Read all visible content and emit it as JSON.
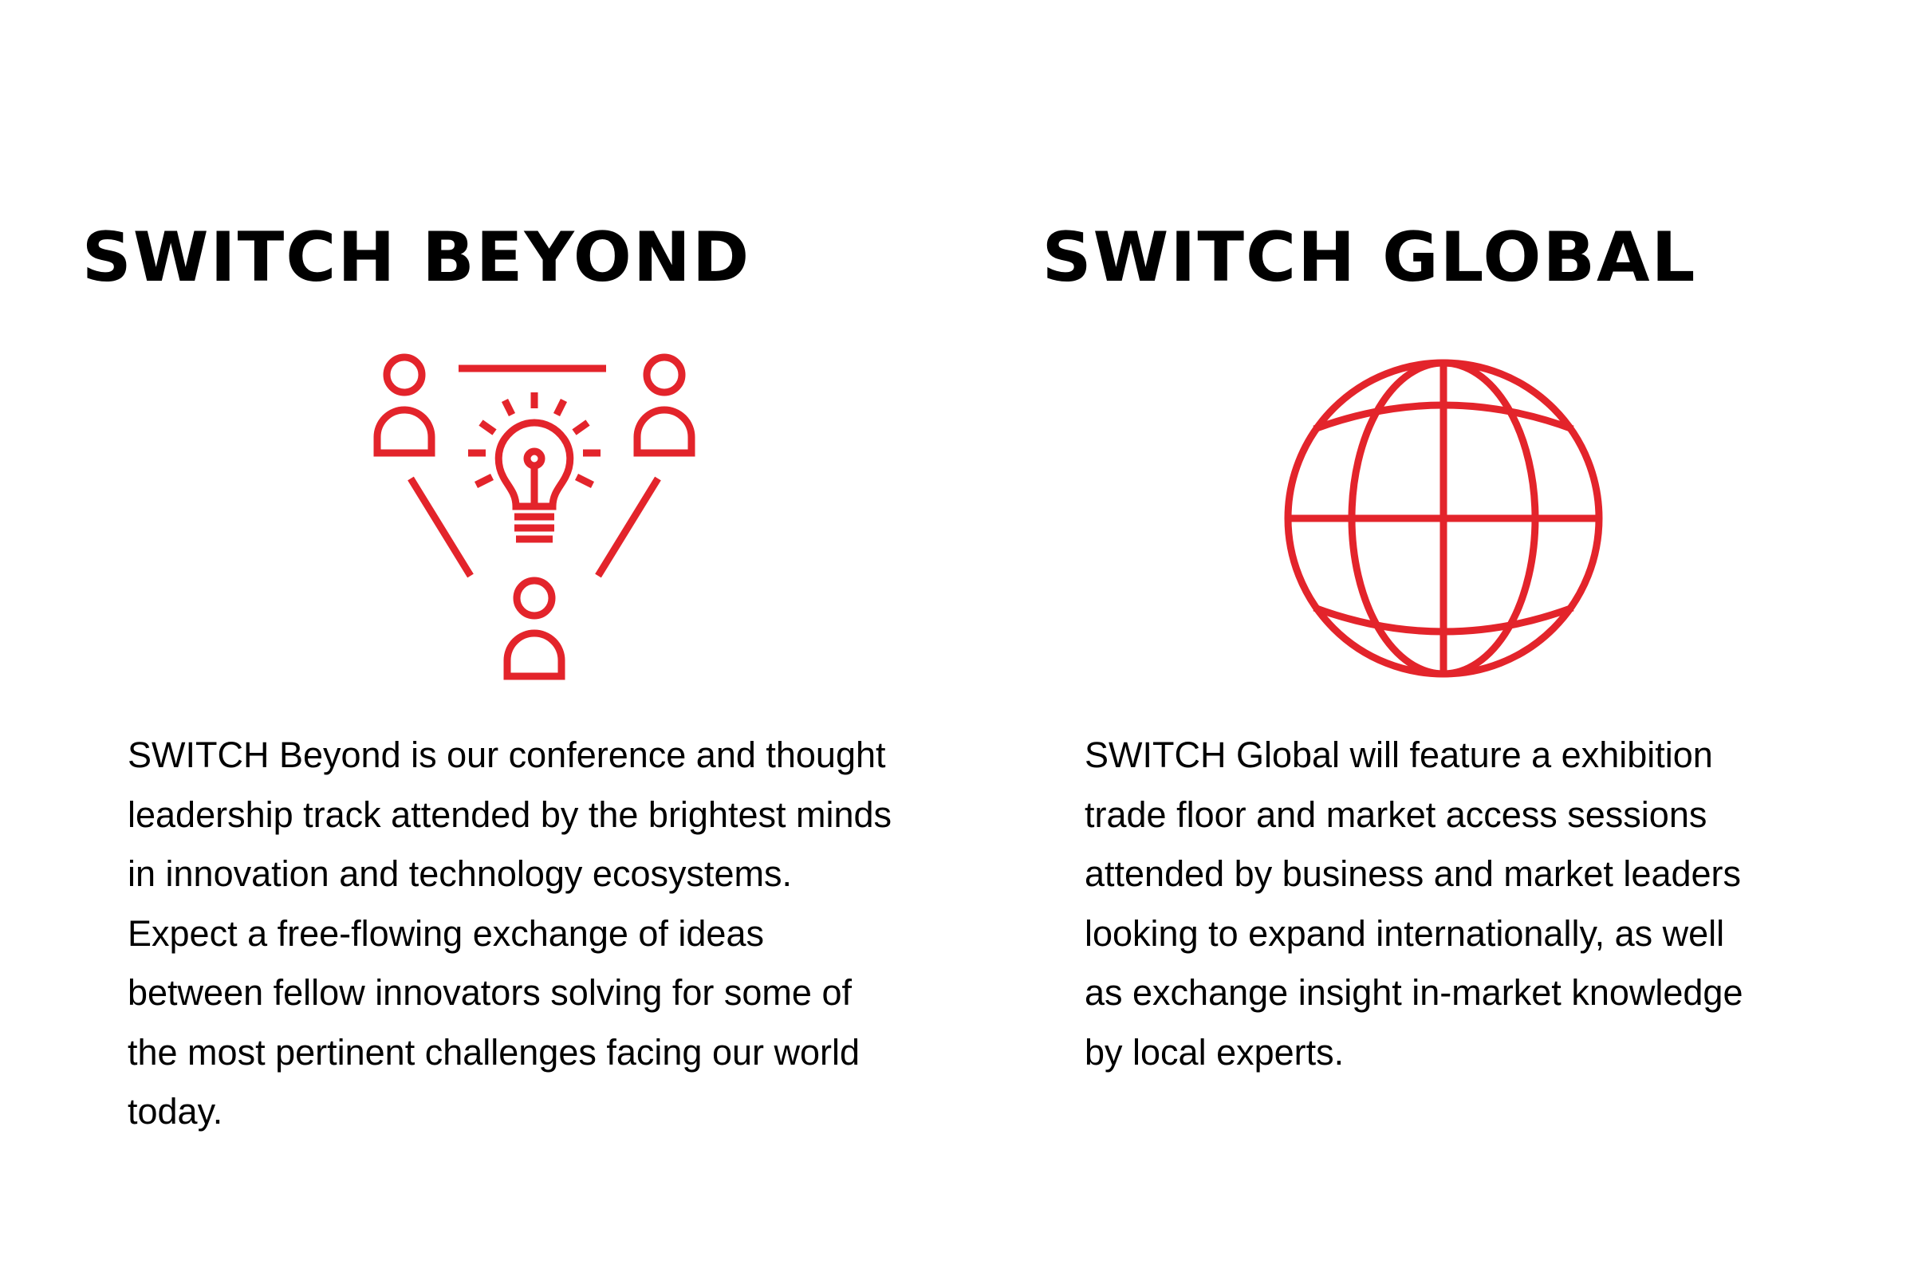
{
  "colors": {
    "accent": "#e3242b",
    "text": "#000000",
    "background": "#ffffff"
  },
  "beyond": {
    "title": "SWITCH BEYOND",
    "icon": "ideas-people-lightbulb-icon",
    "description": "SWITCH Beyond is our conference and thought\nleadership track attended by the brightest minds\nin innovation and technology ecosystems.\nExpect a free-flowing exchange of ideas\nbetween fellow innovators solving for some of\nthe most pertinent challenges facing our world\ntoday."
  },
  "global": {
    "title": "SWITCH GLOBAL",
    "icon": "globe-icon",
    "description": "SWITCH Global will feature a exhibition\ntrade floor and market access sessions\nattended by business and market leaders\nlooking to expand internationally, as well\nas exchange insight in-market knowledge\nby local experts."
  }
}
